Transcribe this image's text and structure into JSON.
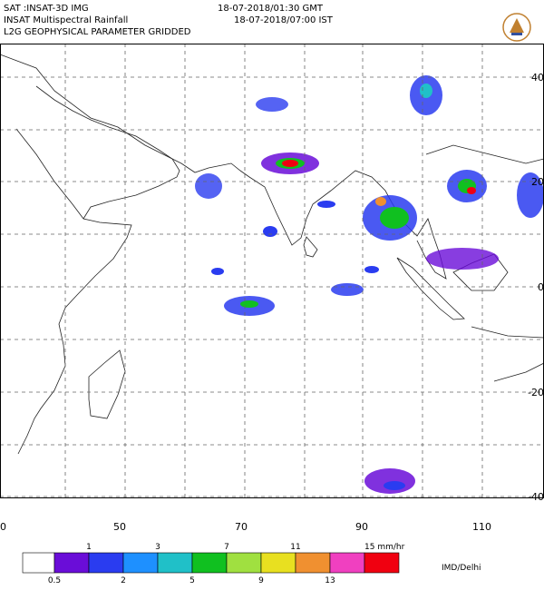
{
  "header": {
    "satellite": "SAT :INSAT-3D IMG",
    "product": "INSAT Multispectral Rainfall",
    "level": "L2G GEOPHYSICAL PARAMETER GRIDDED",
    "time_gmt": "18-07-2018/01:30 GMT",
    "time_ist": "18-07-2018/07:00 IST"
  },
  "map": {
    "lon_labels": [
      "0",
      "50",
      "70",
      "90",
      "110"
    ],
    "lat_labels": [
      "40",
      "20",
      "0",
      "-20",
      "-40"
    ]
  },
  "colorbar": {
    "colors": [
      "#ffffff",
      "#6a0dd8",
      "#2a3cf0",
      "#1e90ff",
      "#20c0c8",
      "#10c020",
      "#a0e040",
      "#e8e020",
      "#f09030",
      "#f040c0",
      "#f00010"
    ],
    "upper_labels": [
      "1",
      "3",
      "7",
      "11",
      "15 mm/hr"
    ],
    "lower_labels": [
      "0.5",
      "2",
      "5",
      "9",
      "13"
    ]
  },
  "credit": "IMD/Delhi"
}
